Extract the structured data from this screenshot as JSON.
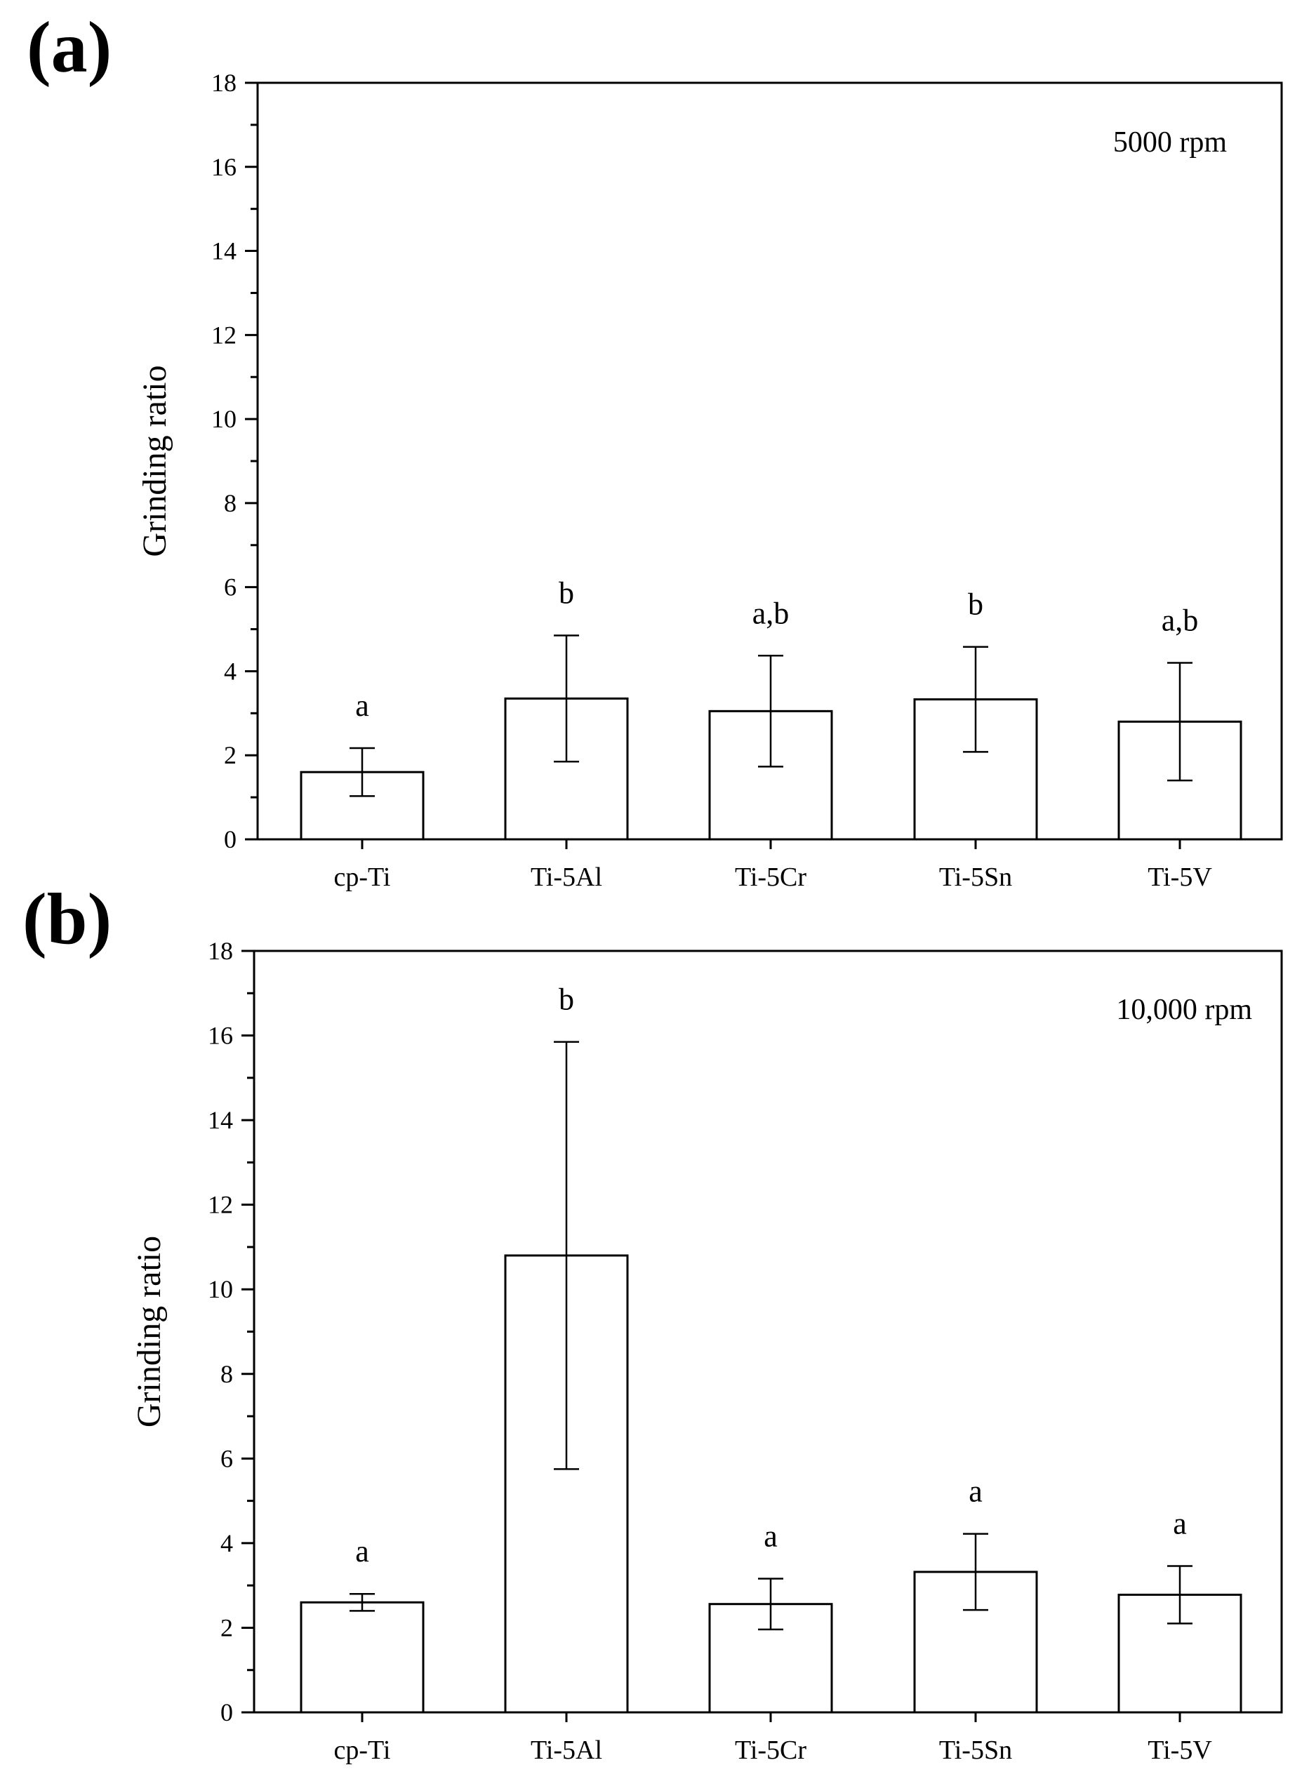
{
  "chart_data": [
    {
      "panel": "(a)",
      "type": "bar",
      "annotation": "5000 rpm",
      "ylabel": "Grinding ratio",
      "xlabel": "",
      "ylim": [
        0,
        18
      ],
      "yticks": [
        0,
        2,
        4,
        6,
        8,
        10,
        12,
        14,
        16,
        18
      ],
      "categories": [
        "cp-Ti",
        "Ti-5Al",
        "Ti-5Cr",
        "Ti-5Sn",
        "Ti-5V"
      ],
      "values": [
        1.6,
        3.35,
        3.05,
        3.33,
        2.8
      ],
      "errors": [
        0.57,
        1.5,
        1.32,
        1.25,
        1.4
      ],
      "significance": [
        "a",
        "b",
        "a,b",
        "b",
        "a,b"
      ],
      "grid": false
    },
    {
      "panel": "(b)",
      "type": "bar",
      "annotation": "10,000 rpm",
      "ylabel": "Grinding ratio",
      "xlabel": "",
      "ylim": [
        0,
        18
      ],
      "yticks": [
        0,
        2,
        4,
        6,
        8,
        10,
        12,
        14,
        16,
        18
      ],
      "categories": [
        "cp-Ti",
        "Ti-5Al",
        "Ti-5Cr",
        "Ti-5Sn",
        "Ti-5V"
      ],
      "values": [
        2.6,
        10.8,
        2.56,
        3.32,
        2.78
      ],
      "errors": [
        0.2,
        5.05,
        0.6,
        0.9,
        0.68
      ],
      "significance": [
        "a",
        "b",
        "a",
        "a",
        "a"
      ],
      "grid": false
    }
  ],
  "colors": {
    "bar_fill": "#ffffff",
    "stroke": "#000000"
  }
}
